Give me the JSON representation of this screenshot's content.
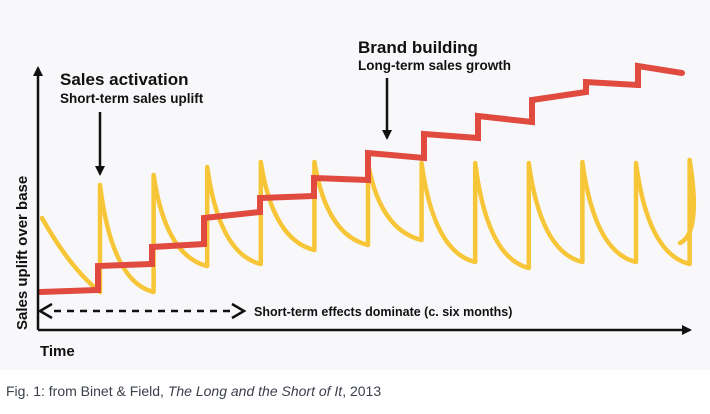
{
  "diagram": {
    "annotations": {
      "sales_activation_title": "Sales activation",
      "sales_activation_sub": "Short-term sales uplift",
      "brand_building_title": "Brand building",
      "brand_building_sub": "Long-term sales growth",
      "short_term_label": "Short-term effects dominate (c. six months)"
    },
    "axes": {
      "ylabel": "Sales uplift over base",
      "xlabel": "Time"
    },
    "colors": {
      "short_term_curve": "#f7c638",
      "long_term_curve": "#e04a3f",
      "axis": "#111111",
      "background": "#f8f8fb"
    },
    "series": {
      "short_term_spike_count": 12,
      "long_term_step_count": 11
    }
  },
  "caption": {
    "prefix": "Fig. 1: from Binet & Field, ",
    "title": "The Long and the Short of It",
    "suffix": ", 2013"
  }
}
